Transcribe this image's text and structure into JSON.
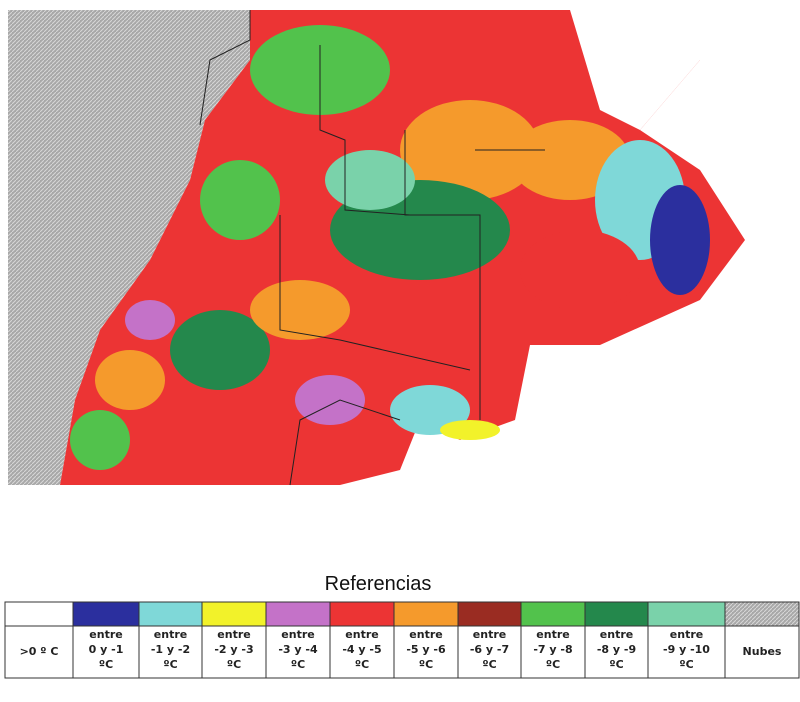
{
  "legend": {
    "title": "Referencias",
    "items": [
      {
        "color": "#ffffff",
        "lines": [
          ">0 º C"
        ]
      },
      {
        "color": "#2b2f9e",
        "lines": [
          "entre",
          "0 y -1",
          "ºC"
        ]
      },
      {
        "color": "#7fd8d8",
        "lines": [
          "entre",
          "-1 y -2",
          "ºC"
        ]
      },
      {
        "color": "#f2f22a",
        "lines": [
          "entre",
          "-2 y -3",
          "ºC"
        ]
      },
      {
        "color": "#c472c8",
        "lines": [
          "entre",
          "-3 y -4",
          "ºC"
        ]
      },
      {
        "color": "#ec3434",
        "lines": [
          "entre",
          "-4 y -5",
          "ºC"
        ]
      },
      {
        "color": "#f59a2c",
        "lines": [
          "entre",
          "-5 y -6",
          "ºC"
        ]
      },
      {
        "color": "#9a2c22",
        "lines": [
          "entre",
          "-6 y -7",
          "ºC"
        ]
      },
      {
        "color": "#52c24c",
        "lines": [
          "entre",
          "-7 y -8",
          "ºC"
        ]
      },
      {
        "color": "#24884c",
        "lines": [
          "entre",
          "-8 y -9",
          "ºC"
        ]
      },
      {
        "color": "#7ad2aa",
        "lines": [
          "entre",
          "-9 y -10",
          "ºC"
        ]
      },
      {
        "color": "#9a9a9a",
        "lines": [
          "Nubes"
        ]
      }
    ]
  }
}
